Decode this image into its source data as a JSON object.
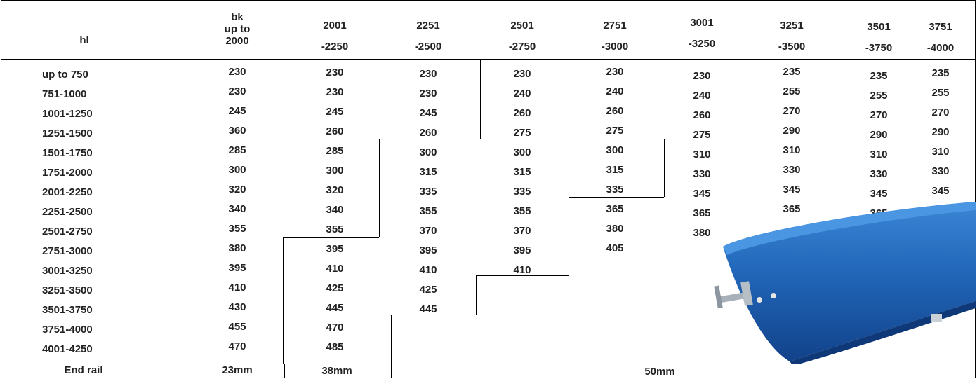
{
  "table": {
    "corner_label": "hl",
    "column_headers": [
      {
        "line1": "bk",
        "line2": "up to",
        "line3": "2000"
      },
      {
        "line1": "2001",
        "line2": "-2250"
      },
      {
        "line1": "2251",
        "line2": "-2500"
      },
      {
        "line1": "2501",
        "line2": "-2750"
      },
      {
        "line1": "2751",
        "line2": "-3000"
      },
      {
        "line1": "3001",
        "line2": "-3250"
      },
      {
        "line1": "3251",
        "line2": "-3500"
      },
      {
        "line1": "3501",
        "line2": "-3750"
      },
      {
        "line1": "3751",
        "line2": "-4000"
      }
    ],
    "rows": [
      {
        "label": "up to 750",
        "values": [
          "230",
          "230",
          "230",
          "230",
          "230",
          "230",
          "235",
          "235",
          "235"
        ]
      },
      {
        "label": "751-1000",
        "values": [
          "230",
          "230",
          "230",
          "240",
          "240",
          "240",
          "255",
          "255",
          "255"
        ]
      },
      {
        "label": "1001-1250",
        "values": [
          "245",
          "245",
          "245",
          "260",
          "260",
          "260",
          "270",
          "270",
          "270"
        ]
      },
      {
        "label": "1251-1500",
        "values": [
          "360",
          "260",
          "260",
          "275",
          "275",
          "275",
          "290",
          "290",
          "290"
        ]
      },
      {
        "label": "1501-1750",
        "values": [
          "285",
          "285",
          "300",
          "300",
          "300",
          "310",
          "310",
          "310",
          "310"
        ]
      },
      {
        "label": "1751-2000",
        "values": [
          "300",
          "300",
          "315",
          "315",
          "315",
          "330",
          "330",
          "330",
          "330"
        ]
      },
      {
        "label": "2001-2250",
        "values": [
          "320",
          "320",
          "335",
          "335",
          "335",
          "345",
          "345",
          "345",
          "345"
        ]
      },
      {
        "label": "2251-2500",
        "values": [
          "340",
          "340",
          "355",
          "355",
          "365",
          "365",
          "365",
          "365",
          ""
        ]
      },
      {
        "label": "2501-2750",
        "values": [
          "355",
          "355",
          "370",
          "370",
          "380",
          "380",
          "",
          "",
          ""
        ]
      },
      {
        "label": "2751-3000",
        "values": [
          "380",
          "395",
          "395",
          "395",
          "405",
          "",
          "",
          "",
          ""
        ]
      },
      {
        "label": "3001-3250",
        "values": [
          "395",
          "410",
          "410",
          "410",
          "",
          "",
          "",
          "",
          ""
        ]
      },
      {
        "label": "3251-3500",
        "values": [
          "410",
          "425",
          "425",
          "",
          "",
          "",
          "",
          "",
          ""
        ]
      },
      {
        "label": "3501-3750",
        "values": [
          "430",
          "445",
          "445",
          "",
          "",
          "",
          "",
          "",
          ""
        ]
      },
      {
        "label": "3751-4000",
        "values": [
          "455",
          "470",
          "",
          "",
          "",
          "",
          "",
          "",
          ""
        ]
      },
      {
        "label": "4001-4250",
        "values": [
          "470",
          "485",
          "",
          "",
          "",
          "",
          "",
          "",
          ""
        ]
      }
    ],
    "footer": {
      "label": "End rail",
      "values": [
        "23mm",
        "38mm",
        "50mm"
      ]
    }
  },
  "colors": {
    "rail_blue": "#2166b8",
    "rail_dark": "#12428a",
    "bracket": "#9aa3ad"
  },
  "image": {
    "icon": "blue-end-rail-photo"
  }
}
